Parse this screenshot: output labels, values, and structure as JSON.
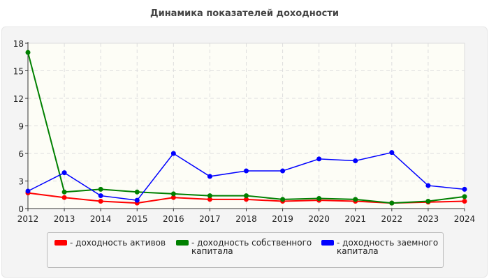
{
  "chart_data": {
    "type": "line",
    "title": "Динамика показателей доходности",
    "xlabel": "",
    "ylabel": "",
    "categories": [
      "2012",
      "2013",
      "2014",
      "2015",
      "2016",
      "2017",
      "2018",
      "2019",
      "2020",
      "2021",
      "2022",
      "2023",
      "2024"
    ],
    "ylim": [
      0,
      18
    ],
    "yticks": [
      "0",
      "3",
      "6",
      "9",
      "12",
      "15",
      "18"
    ],
    "grid": true,
    "legend_position": "bottom",
    "series": [
      {
        "name": "- доходность активов",
        "color": "#ff0000",
        "values": [
          1.7,
          1.2,
          0.8,
          0.6,
          1.2,
          1.0,
          1.0,
          0.8,
          0.9,
          0.8,
          0.6,
          0.7,
          0.8
        ]
      },
      {
        "name": "- доходность собственного капитала",
        "color": "#008000",
        "values": [
          17.0,
          1.8,
          2.1,
          1.8,
          1.6,
          1.4,
          1.4,
          1.0,
          1.1,
          1.0,
          0.6,
          0.8,
          1.3
        ]
      },
      {
        "name": "- доходность заемного капитала",
        "color": "#0000ff",
        "values": [
          1.9,
          3.9,
          1.4,
          0.9,
          6.0,
          3.5,
          4.1,
          4.1,
          5.4,
          5.2,
          6.1,
          2.5,
          2.1
        ]
      }
    ]
  }
}
